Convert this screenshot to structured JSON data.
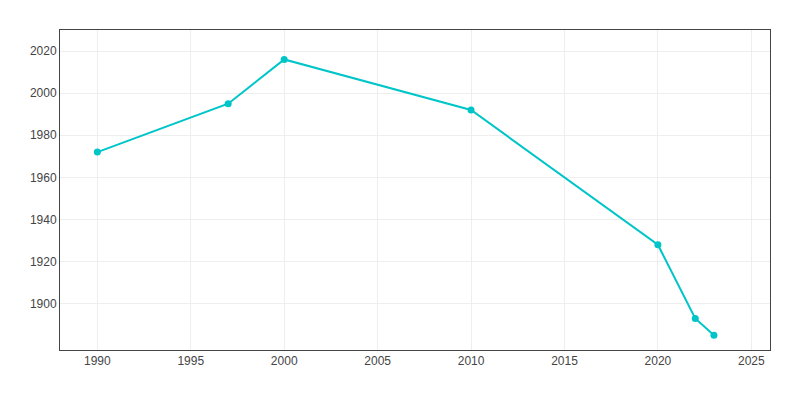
{
  "chart_data": {
    "type": "line",
    "x": [
      1990,
      1997,
      2000,
      2010,
      2020,
      2022,
      2023
    ],
    "values": [
      1972,
      1995,
      2016,
      1992,
      1928,
      1893,
      1885
    ],
    "color": "#00C5C8",
    "marker": "circle",
    "xlim": [
      1988,
      2026
    ],
    "ylim": [
      1878,
      2030
    ],
    "xticks": [
      1990,
      1995,
      2000,
      2005,
      2010,
      2015,
      2020,
      2025
    ],
    "yticks": [
      1900,
      1920,
      1940,
      1960,
      1980,
      2000,
      2020
    ],
    "grid": true
  }
}
